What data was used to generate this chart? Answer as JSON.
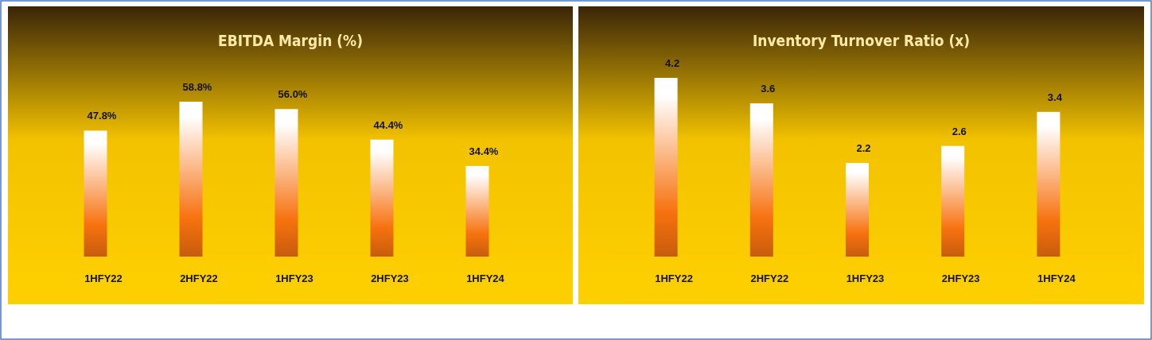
{
  "chart_data": [
    {
      "type": "bar",
      "title": "EBITDA Margin (%)",
      "categories": [
        "1HFY22",
        "2HFY22",
        "1HFY23",
        "2HFY23",
        "1HFY24"
      ],
      "values": [
        47.8,
        58.8,
        56.0,
        44.4,
        34.4
      ],
      "value_labels": [
        "47.8%",
        "58.8%",
        "56.0%",
        "44.4%",
        "34.4%"
      ],
      "color": "#f7720f"
    },
    {
      "type": "bar",
      "title": "Inventory Turnover Ratio (x)",
      "categories": [
        "1HFY22",
        "2HFY22",
        "1HFY23",
        "2HFY23",
        "1HFY24"
      ],
      "values": [
        4.2,
        3.6,
        2.2,
        2.6,
        3.4
      ],
      "data_labels": true,
      "color": "#f7720f"
    }
  ]
}
